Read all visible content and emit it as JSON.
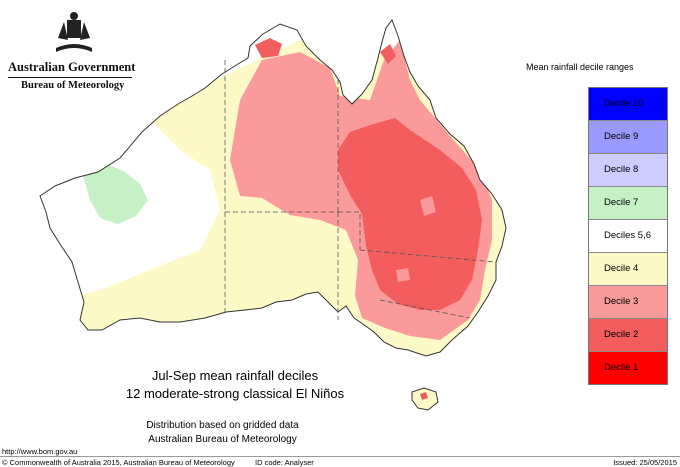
{
  "branding": {
    "government": "Australian Government",
    "bureau": "Bureau of Meteorology"
  },
  "legend": {
    "title": "Mean rainfall decile ranges",
    "items": [
      {
        "label": "Decile 10",
        "color": "#0000ff"
      },
      {
        "label": "Decile 9",
        "color": "#9999ff"
      },
      {
        "label": "Decile 8",
        "color": "#ccccff"
      },
      {
        "label": "Decile 7",
        "color": "#c6f0c6"
      },
      {
        "label": "Deciles 5,6",
        "color": "#ffffff"
      },
      {
        "label": "Decile 4",
        "color": "#fdfac8"
      },
      {
        "label": "Decile 3",
        "color": "#fb9a9a"
      },
      {
        "label": "Decile 2",
        "color": "#f35d5d"
      },
      {
        "label": "Decile 1",
        "color": "#ff0000"
      }
    ]
  },
  "map": {
    "caption_line1": "Jul-Sep mean rainfall deciles",
    "caption_line2": "12 moderate-strong classical El Niños",
    "note_line1": "Distribution based on gridded data",
    "note_line2": "Australian Bureau of Meteorology",
    "colors": {
      "outline": "#333333",
      "border": "#555555",
      "decile_2": "#f35d5d",
      "decile_3": "#fb9a9a",
      "decile_4": "#fdfac8",
      "decile_7": "#c6f0c6",
      "deciles_5_6": "#ffffff"
    }
  },
  "footer": {
    "url": "http://www.bom.gov.au",
    "copyright": "© Commonwealth of Australia 2015, Australian Bureau of Meteorology",
    "id_code": "ID code: Analyser",
    "issued": "Issued: 25/05/2015"
  }
}
